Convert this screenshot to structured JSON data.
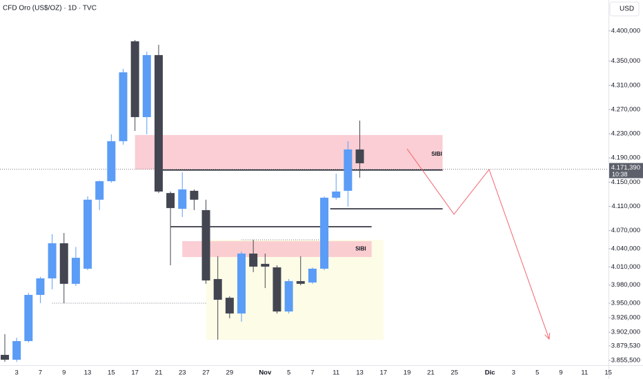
{
  "chart_data": {
    "type": "candlestick",
    "title": "CFD Oro (US$/OZ) · 1D · TVC",
    "currency": "USD",
    "up_color": "#5b9cf6",
    "down_color": "#434651",
    "categories": [
      null,
      "3",
      null,
      "7",
      null,
      "9",
      null,
      "13",
      null,
      "15",
      null,
      "17",
      null,
      "21",
      null,
      "23",
      null,
      "27",
      null,
      "29",
      null,
      null,
      "Nov",
      null,
      "5",
      null,
      "7",
      null,
      "11",
      null,
      "13",
      null,
      "17",
      null,
      "19",
      null,
      "21",
      null,
      "25",
      null,
      null,
      "Dic",
      null,
      "3",
      null,
      "5",
      null,
      "9",
      null,
      "11",
      null,
      "15"
    ],
    "open": [
      3864.6,
      3856.6,
      3887.4,
      3963.7,
      3991,
      4049,
      3982,
      4007,
      4121,
      4151.6,
      4217.7,
      4382.8,
      4257.5,
      4360,
      4132,
      4106,
      4135.7,
      4103.8,
      3989.9,
      3959,
      3933,
      4032,
      4015,
      4009.2,
      3936.3,
      3986.5,
      3984.2,
      4007,
      4124.3,
      4135.7,
      4204,
      null,
      null,
      null,
      null,
      null,
      null,
      null,
      null,
      null,
      null,
      null,
      null,
      null,
      null,
      null,
      null,
      null,
      null,
      null,
      null,
      null
    ],
    "high": [
      3898.8,
      3893,
      3967,
      3993.5,
      4064,
      4066,
      4043,
      4126.5,
      4152.7,
      4229,
      4337.2,
      4385,
      4365.7,
      4377,
      4134.5,
      4166.4,
      4138,
      4121,
      4027.5,
      3961.4,
      4035.4,
      4054.8,
      4032,
      4012.6,
      3990,
      4027.5,
      4009,
      4126.5,
      4164,
      4217.7,
      4251.8,
      null,
      null,
      null,
      null,
      null,
      null,
      null,
      null,
      null,
      null,
      null,
      null,
      null,
      null,
      null,
      null,
      null,
      null,
      null,
      null,
      null
    ],
    "low": [
      3853.2,
      3853,
      3885,
      3950,
      3973,
      3950,
      3978.5,
      4004.6,
      4103.8,
      4149.3,
      4212,
      4234.7,
      4229,
      4132,
      4012.6,
      4092.4,
      4103.8,
      3982,
      3889.6,
      3925,
      3919.2,
      4001.3,
      3975,
      3933,
      3933,
      3979.6,
      3982,
      4004.6,
      4121,
      4109.5,
      4157.3,
      null,
      null,
      null,
      null,
      null,
      null,
      null,
      null,
      null,
      null,
      null,
      null,
      null,
      null,
      null,
      null,
      null,
      null,
      null,
      null,
      null
    ],
    "close": [
      3856.6,
      3887.4,
      3963.7,
      3991,
      4049,
      3982,
      4025,
      4121,
      4151.6,
      4217.7,
      4331.5,
      4257.5,
      4360,
      4134.5,
      4107.2,
      4138,
      4121,
      3987.6,
      3955.7,
      3933,
      4032,
      4010.4,
      4010.4,
      3936.3,
      3986.5,
      3982,
      4007,
      4124.3,
      4134.5,
      4204,
      4181.2,
      null,
      null,
      null,
      null,
      null,
      null,
      null,
      null,
      null,
      null,
      null,
      null,
      null,
      null,
      null,
      null,
      null,
      null,
      null,
      null,
      null
    ],
    "ylim": [
      3847.5,
      4451
    ],
    "yticks": [
      {
        "value": 4400,
        "label": "4.400,000"
      },
      {
        "value": 4350,
        "label": "4.350,000"
      },
      {
        "value": 4310,
        "label": "4.310,000"
      },
      {
        "value": 4270,
        "label": "4.270,000"
      },
      {
        "value": 4230,
        "label": "4.230,000"
      },
      {
        "value": 4190,
        "label": "4.190,000"
      },
      {
        "value": 4150,
        "label": "4.150,000"
      },
      {
        "value": 4110,
        "label": "4.110,000"
      },
      {
        "value": 4070,
        "label": "4.070,000"
      },
      {
        "value": 4040,
        "label": "4.040,000"
      },
      {
        "value": 4010,
        "label": "4.010,000"
      },
      {
        "value": 3980,
        "label": "3.980,000"
      },
      {
        "value": 3950,
        "label": "3.950,000"
      },
      {
        "value": 3926,
        "label": "3.926,000"
      },
      {
        "value": 3902,
        "label": "3.902,000"
      },
      {
        "value": 3879.53,
        "label": "3.879,530"
      },
      {
        "value": 3855.5,
        "label": "3.855,500"
      }
    ],
    "last_price": {
      "value": 4171.39,
      "label": "4.171,390"
    },
    "countdown": "10:38",
    "zones": [
      {
        "from": 11,
        "to": 37,
        "top": 4227.9,
        "bottom": 4171,
        "color": "#f9c5cc"
      },
      {
        "from": 17,
        "to": 32,
        "top": 4054.8,
        "bottom": 3889.6,
        "color": "#fdfbe3"
      },
      {
        "from": 15,
        "to": 31,
        "top": 4052.5,
        "bottom": 4026.3,
        "color": "#f9c5cc",
        "label": "SIBI"
      }
    ],
    "zone_label": {
      "text": "SIBI",
      "at": 36.5,
      "price": 4196
    },
    "levels": [
      {
        "from": 13.3,
        "to": 37,
        "price": 4170,
        "style": "solid"
      },
      {
        "from": 27.5,
        "to": 37,
        "price": 4106,
        "style": "solid"
      },
      {
        "from": 14,
        "to": 31,
        "price": 4076.4,
        "style": "solid"
      },
      {
        "from": 4,
        "to": 17,
        "price": 3950,
        "style": "dotted"
      },
      {
        "from": 20,
        "to": 26.7,
        "price": 4054.8,
        "style": "dotted"
      }
    ],
    "projection": {
      "color": "#f0666e",
      "x": [
        34,
        37.96,
        40.93,
        46
      ],
      "y": [
        4205,
        4097,
        4171,
        3890.8
      ]
    }
  }
}
